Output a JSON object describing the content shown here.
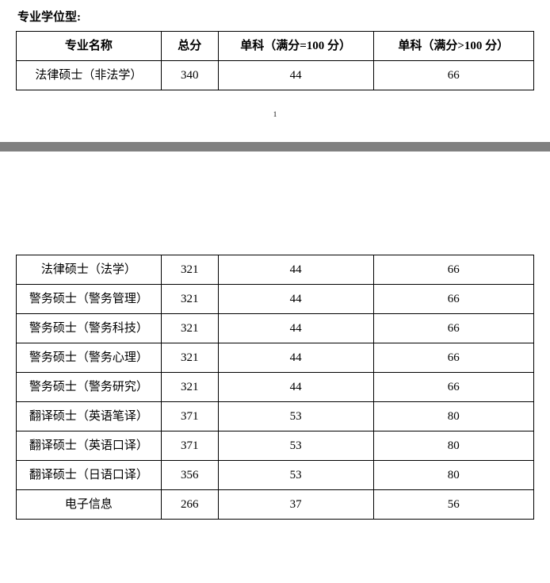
{
  "section_title": "专业学位型:",
  "page_number": "1",
  "table1": {
    "headers": {
      "name": "专业名称",
      "total": "总分",
      "sub100": "单科（满分=100 分）",
      "subgt100": "单科（满分>100 分）"
    },
    "rows": [
      {
        "name": "法律硕士（非法学）",
        "total": "340",
        "sub100": "44",
        "subgt100": "66"
      }
    ]
  },
  "table2": {
    "rows": [
      {
        "name": "法律硕士（法学）",
        "total": "321",
        "sub100": "44",
        "subgt100": "66"
      },
      {
        "name": "警务硕士（警务管理）",
        "total": "321",
        "sub100": "44",
        "subgt100": "66"
      },
      {
        "name": "警务硕士（警务科技）",
        "total": "321",
        "sub100": "44",
        "subgt100": "66"
      },
      {
        "name": "警务硕士（警务心理）",
        "total": "321",
        "sub100": "44",
        "subgt100": "66"
      },
      {
        "name": "警务硕士（警务研究）",
        "total": "321",
        "sub100": "44",
        "subgt100": "66"
      },
      {
        "name": "翻译硕士（英语笔译）",
        "total": "371",
        "sub100": "53",
        "subgt100": "80"
      },
      {
        "name": "翻译硕士（英语口译）",
        "total": "371",
        "sub100": "53",
        "subgt100": "80"
      },
      {
        "name": "翻译硕士（日语口译）",
        "total": "356",
        "sub100": "53",
        "subgt100": "80"
      },
      {
        "name": "电子信息",
        "total": "266",
        "sub100": "37",
        "subgt100": "56"
      }
    ]
  }
}
